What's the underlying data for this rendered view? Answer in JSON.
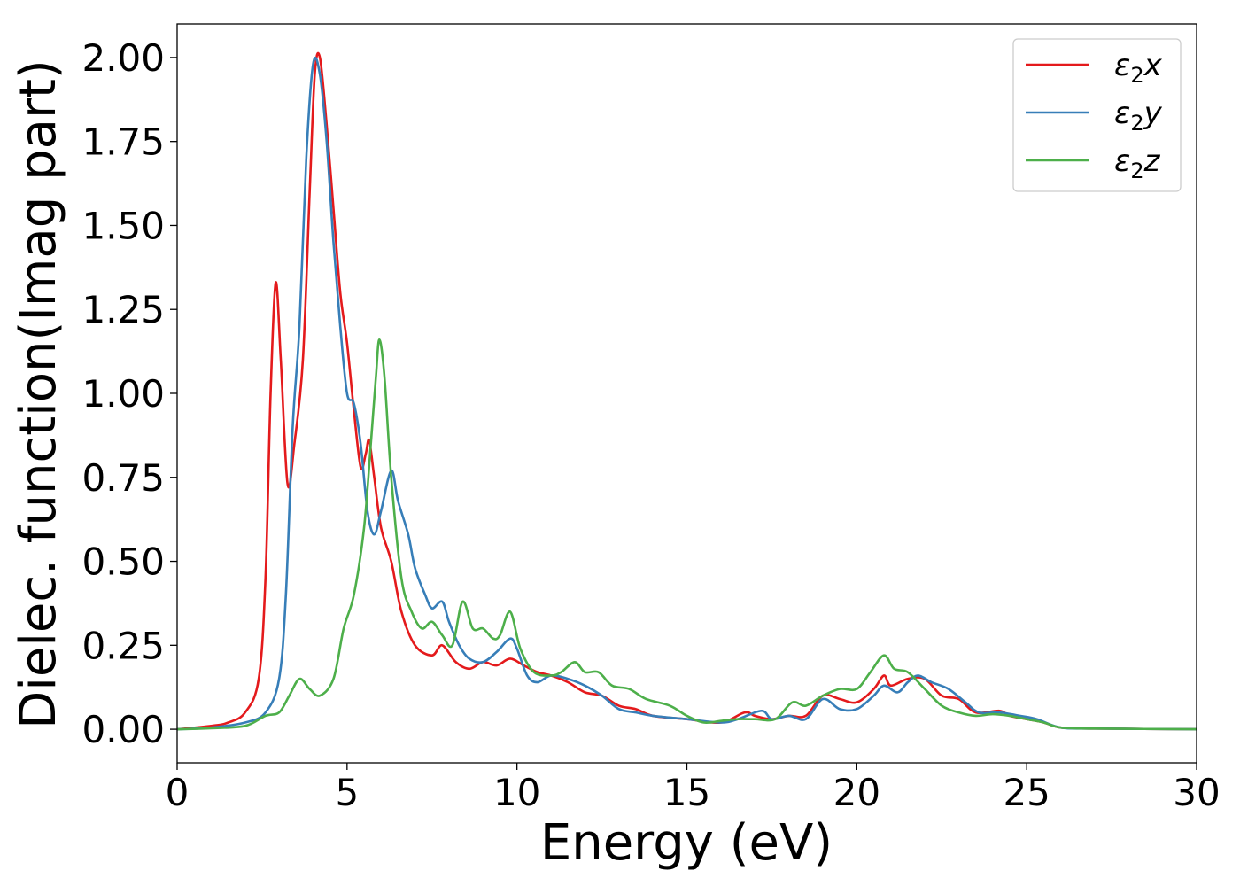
{
  "chart_data": {
    "type": "line",
    "xlabel": "Energy (eV)",
    "ylabel": "Dielec. function(Imag part)",
    "xlim": [
      0,
      30
    ],
    "ylim": [
      -0.1,
      2.1
    ],
    "xticks": [
      0,
      5,
      10,
      15,
      20,
      25,
      30
    ],
    "yticks": [
      0.0,
      0.25,
      0.5,
      0.75,
      1.0,
      1.25,
      1.5,
      1.75,
      2.0
    ],
    "xtick_labels": [
      "0",
      "5",
      "10",
      "15",
      "20",
      "25",
      "30"
    ],
    "ytick_labels": [
      "0.00",
      "0.25",
      "0.50",
      "0.75",
      "1.00",
      "1.25",
      "1.50",
      "1.75",
      "2.00"
    ],
    "grid": false,
    "legend_position": "top-right",
    "series": [
      {
        "name": "ε₂x",
        "legend_main": "ε",
        "legend_sub": "2",
        "legend_var": "x",
        "color": "#e41a1c",
        "points": [
          [
            0,
            0
          ],
          [
            1,
            0.01
          ],
          [
            1.5,
            0.02
          ],
          [
            2,
            0.05
          ],
          [
            2.4,
            0.15
          ],
          [
            2.6,
            0.45
          ],
          [
            2.75,
            1.0
          ],
          [
            2.9,
            1.33
          ],
          [
            3.05,
            1.1
          ],
          [
            3.25,
            0.73
          ],
          [
            3.45,
            0.85
          ],
          [
            3.7,
            1.1
          ],
          [
            3.9,
            1.6
          ],
          [
            4.05,
            1.95
          ],
          [
            4.2,
            2.0
          ],
          [
            4.4,
            1.8
          ],
          [
            4.6,
            1.55
          ],
          [
            4.8,
            1.3
          ],
          [
            5.0,
            1.15
          ],
          [
            5.2,
            0.95
          ],
          [
            5.4,
            0.78
          ],
          [
            5.55,
            0.82
          ],
          [
            5.65,
            0.86
          ],
          [
            5.8,
            0.75
          ],
          [
            6.0,
            0.6
          ],
          [
            6.3,
            0.5
          ],
          [
            6.6,
            0.35
          ],
          [
            7.0,
            0.25
          ],
          [
            7.5,
            0.22
          ],
          [
            7.8,
            0.25
          ],
          [
            8.2,
            0.2
          ],
          [
            8.6,
            0.18
          ],
          [
            9.0,
            0.2
          ],
          [
            9.4,
            0.19
          ],
          [
            9.8,
            0.21
          ],
          [
            10.2,
            0.19
          ],
          [
            10.6,
            0.17
          ],
          [
            11.0,
            0.16
          ],
          [
            11.5,
            0.14
          ],
          [
            12.0,
            0.11
          ],
          [
            12.5,
            0.1
          ],
          [
            13.0,
            0.07
          ],
          [
            13.5,
            0.06
          ],
          [
            14.0,
            0.04
          ],
          [
            15.0,
            0.03
          ],
          [
            16.0,
            0.02
          ],
          [
            16.7,
            0.05
          ],
          [
            17.0,
            0.04
          ],
          [
            17.5,
            0.03
          ],
          [
            18.0,
            0.04
          ],
          [
            18.5,
            0.04
          ],
          [
            19.0,
            0.1
          ],
          [
            19.5,
            0.09
          ],
          [
            20.0,
            0.08
          ],
          [
            20.5,
            0.12
          ],
          [
            20.8,
            0.16
          ],
          [
            21.0,
            0.13
          ],
          [
            21.5,
            0.15
          ],
          [
            22.0,
            0.15
          ],
          [
            22.5,
            0.1
          ],
          [
            23.0,
            0.09
          ],
          [
            23.5,
            0.05
          ],
          [
            24.2,
            0.055
          ],
          [
            24.5,
            0.04
          ],
          [
            25.0,
            0.03
          ],
          [
            25.5,
            0.02
          ],
          [
            26.0,
            0.005
          ],
          [
            27.0,
            0.002
          ],
          [
            30.0,
            0.0
          ]
        ]
      },
      {
        "name": "ε₂y",
        "legend_main": "ε",
        "legend_sub": "2",
        "legend_var": "y",
        "color": "#377eb8",
        "points": [
          [
            0,
            0
          ],
          [
            1,
            0.005
          ],
          [
            2,
            0.02
          ],
          [
            2.6,
            0.05
          ],
          [
            3.0,
            0.15
          ],
          [
            3.2,
            0.4
          ],
          [
            3.4,
            0.9
          ],
          [
            3.6,
            1.2
          ],
          [
            3.8,
            1.7
          ],
          [
            4.0,
            1.98
          ],
          [
            4.2,
            1.95
          ],
          [
            4.4,
            1.75
          ],
          [
            4.6,
            1.45
          ],
          [
            4.8,
            1.2
          ],
          [
            5.0,
            1.0
          ],
          [
            5.2,
            0.97
          ],
          [
            5.4,
            0.85
          ],
          [
            5.6,
            0.65
          ],
          [
            5.8,
            0.58
          ],
          [
            6.0,
            0.65
          ],
          [
            6.3,
            0.77
          ],
          [
            6.5,
            0.68
          ],
          [
            6.8,
            0.58
          ],
          [
            7.0,
            0.48
          ],
          [
            7.3,
            0.4
          ],
          [
            7.5,
            0.36
          ],
          [
            7.8,
            0.38
          ],
          [
            8.0,
            0.32
          ],
          [
            8.3,
            0.25
          ],
          [
            8.6,
            0.21
          ],
          [
            9.0,
            0.2
          ],
          [
            9.4,
            0.23
          ],
          [
            9.8,
            0.27
          ],
          [
            10.0,
            0.24
          ],
          [
            10.3,
            0.16
          ],
          [
            10.6,
            0.14
          ],
          [
            11.0,
            0.16
          ],
          [
            11.5,
            0.15
          ],
          [
            12.0,
            0.13
          ],
          [
            12.5,
            0.1
          ],
          [
            13.0,
            0.06
          ],
          [
            13.5,
            0.05
          ],
          [
            14.0,
            0.04
          ],
          [
            15.0,
            0.03
          ],
          [
            16.0,
            0.02
          ],
          [
            16.5,
            0.03
          ],
          [
            17.2,
            0.055
          ],
          [
            17.5,
            0.03
          ],
          [
            18.0,
            0.04
          ],
          [
            18.5,
            0.03
          ],
          [
            19.0,
            0.09
          ],
          [
            19.5,
            0.06
          ],
          [
            20.0,
            0.06
          ],
          [
            20.5,
            0.1
          ],
          [
            20.8,
            0.13
          ],
          [
            21.2,
            0.11
          ],
          [
            21.5,
            0.14
          ],
          [
            21.8,
            0.16
          ],
          [
            22.2,
            0.14
          ],
          [
            22.7,
            0.12
          ],
          [
            23.2,
            0.08
          ],
          [
            23.6,
            0.05
          ],
          [
            24.2,
            0.05
          ],
          [
            24.8,
            0.04
          ],
          [
            25.3,
            0.03
          ],
          [
            26.0,
            0.005
          ],
          [
            27.0,
            0.002
          ],
          [
            30.0,
            0.0
          ]
        ]
      },
      {
        "name": "ε₂z",
        "legend_main": "ε",
        "legend_sub": "2",
        "legend_var": "z",
        "color": "#4daf4a",
        "points": [
          [
            0,
            0
          ],
          [
            1,
            0.003
          ],
          [
            2,
            0.01
          ],
          [
            2.6,
            0.04
          ],
          [
            3.0,
            0.05
          ],
          [
            3.3,
            0.1
          ],
          [
            3.6,
            0.15
          ],
          [
            3.9,
            0.12
          ],
          [
            4.2,
            0.1
          ],
          [
            4.6,
            0.15
          ],
          [
            4.9,
            0.3
          ],
          [
            5.2,
            0.4
          ],
          [
            5.5,
            0.6
          ],
          [
            5.7,
            0.85
          ],
          [
            5.85,
            1.05
          ],
          [
            5.95,
            1.16
          ],
          [
            6.1,
            1.05
          ],
          [
            6.3,
            0.75
          ],
          [
            6.6,
            0.45
          ],
          [
            6.9,
            0.35
          ],
          [
            7.2,
            0.3
          ],
          [
            7.5,
            0.32
          ],
          [
            7.8,
            0.28
          ],
          [
            8.1,
            0.25
          ],
          [
            8.4,
            0.38
          ],
          [
            8.7,
            0.3
          ],
          [
            9.0,
            0.3
          ],
          [
            9.3,
            0.27
          ],
          [
            9.5,
            0.28
          ],
          [
            9.8,
            0.35
          ],
          [
            10.1,
            0.24
          ],
          [
            10.5,
            0.17
          ],
          [
            11.0,
            0.16
          ],
          [
            11.3,
            0.17
          ],
          [
            11.7,
            0.2
          ],
          [
            12.0,
            0.17
          ],
          [
            12.4,
            0.17
          ],
          [
            12.8,
            0.13
          ],
          [
            13.3,
            0.12
          ],
          [
            13.8,
            0.09
          ],
          [
            14.5,
            0.07
          ],
          [
            15.0,
            0.04
          ],
          [
            15.5,
            0.02
          ],
          [
            16.0,
            0.025
          ],
          [
            16.5,
            0.03
          ],
          [
            17.0,
            0.03
          ],
          [
            17.6,
            0.03
          ],
          [
            18.1,
            0.08
          ],
          [
            18.5,
            0.07
          ],
          [
            19.0,
            0.1
          ],
          [
            19.5,
            0.12
          ],
          [
            20.0,
            0.12
          ],
          [
            20.4,
            0.17
          ],
          [
            20.8,
            0.22
          ],
          [
            21.1,
            0.18
          ],
          [
            21.5,
            0.17
          ],
          [
            22.0,
            0.12
          ],
          [
            22.5,
            0.07
          ],
          [
            23.0,
            0.05
          ],
          [
            23.5,
            0.04
          ],
          [
            24.0,
            0.045
          ],
          [
            24.5,
            0.04
          ],
          [
            25.0,
            0.03
          ],
          [
            25.5,
            0.02
          ],
          [
            26.0,
            0.005
          ],
          [
            27.0,
            0.002
          ],
          [
            30.0,
            0.0
          ]
        ]
      }
    ]
  }
}
